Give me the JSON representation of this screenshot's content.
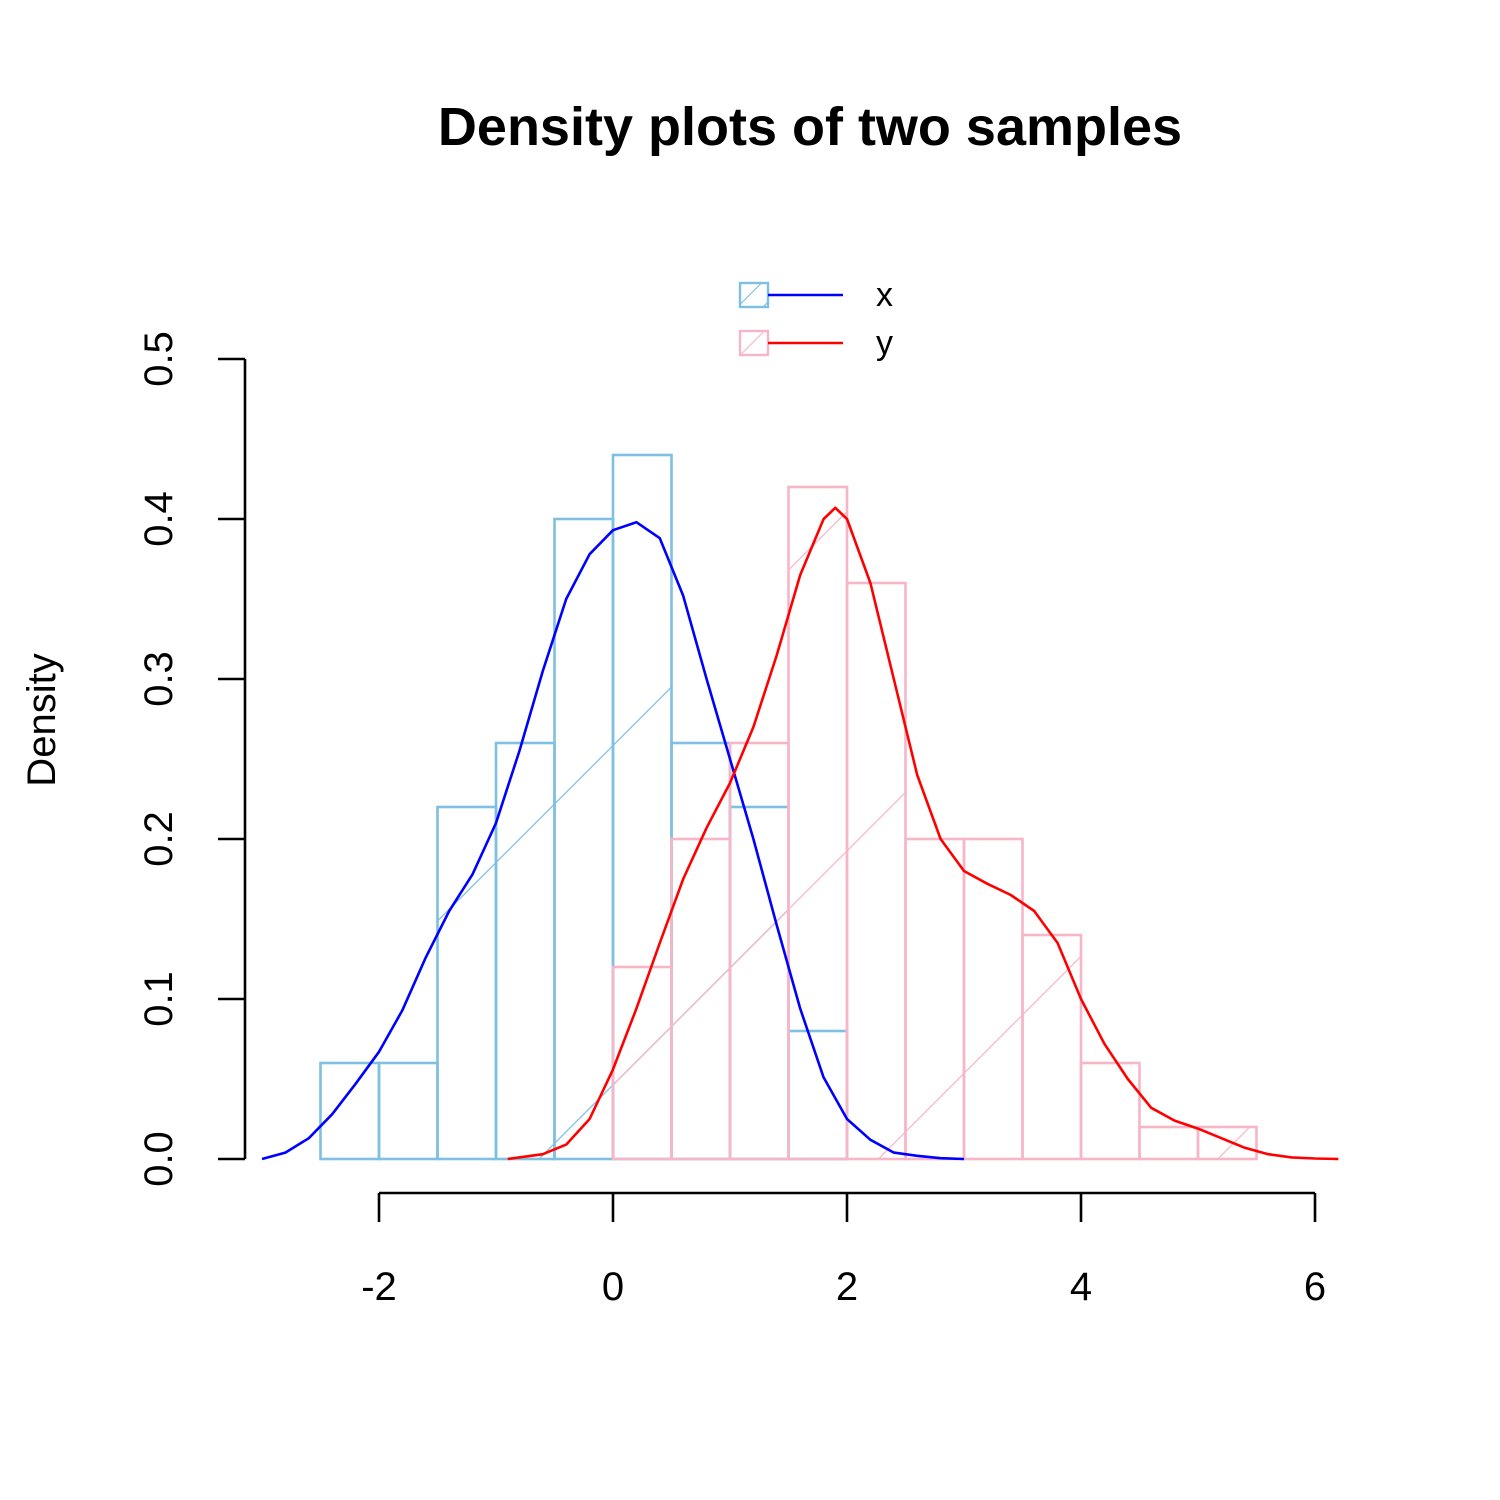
{
  "chart_data": {
    "type": "histogram",
    "title": "Density plots of two samples",
    "ylabel": "Density",
    "xlabel": "",
    "xlim": [
      -3.0,
      6.2
    ],
    "ylim": [
      0,
      0.5
    ],
    "x_ticks": [
      -2,
      0,
      2,
      4,
      6
    ],
    "y_ticks": [
      0.0,
      0.1,
      0.2,
      0.3,
      0.4,
      0.5
    ],
    "x_tick_labels": [
      "-2",
      "0",
      "2",
      "4",
      "6"
    ],
    "y_tick_labels": [
      "0.0",
      "0.1",
      "0.2",
      "0.3",
      "0.4",
      "0.5"
    ],
    "legend": {
      "position": "top",
      "entries": [
        "x",
        "y"
      ]
    },
    "colors": {
      "x_hist": "#7ec0e0",
      "x_density": "#0000ff",
      "y_hist": "#f7b6c8",
      "y_density": "#ff0000"
    },
    "series": [
      {
        "name": "x",
        "bins": [
          {
            "x0": -2.5,
            "x1": -2.0,
            "density": 0.06
          },
          {
            "x0": -2.0,
            "x1": -1.5,
            "density": 0.06
          },
          {
            "x0": -1.5,
            "x1": -1.0,
            "density": 0.22
          },
          {
            "x0": -1.0,
            "x1": -0.5,
            "density": 0.26
          },
          {
            "x0": -0.5,
            "x1": 0.0,
            "density": 0.4
          },
          {
            "x0": 0.0,
            "x1": 0.5,
            "density": 0.44
          },
          {
            "x0": 0.5,
            "x1": 1.0,
            "density": 0.26
          },
          {
            "x0": 1.0,
            "x1": 1.5,
            "density": 0.22
          },
          {
            "x0": 1.5,
            "x1": 2.0,
            "density": 0.08
          }
        ],
        "density": [
          [
            -3.0,
            0.0
          ],
          [
            -2.8,
            0.004
          ],
          [
            -2.6,
            0.013
          ],
          [
            -2.4,
            0.028
          ],
          [
            -2.2,
            0.047
          ],
          [
            -2.0,
            0.067
          ],
          [
            -1.8,
            0.093
          ],
          [
            -1.6,
            0.126
          ],
          [
            -1.4,
            0.155
          ],
          [
            -1.2,
            0.178
          ],
          [
            -1.0,
            0.21
          ],
          [
            -0.8,
            0.255
          ],
          [
            -0.6,
            0.305
          ],
          [
            -0.4,
            0.35
          ],
          [
            -0.2,
            0.378
          ],
          [
            0.0,
            0.393
          ],
          [
            0.2,
            0.398
          ],
          [
            0.4,
            0.388
          ],
          [
            0.6,
            0.352
          ],
          [
            0.8,
            0.3
          ],
          [
            1.0,
            0.25
          ],
          [
            1.2,
            0.2
          ],
          [
            1.4,
            0.146
          ],
          [
            1.6,
            0.094
          ],
          [
            1.8,
            0.051
          ],
          [
            2.0,
            0.025
          ],
          [
            2.2,
            0.012
          ],
          [
            2.4,
            0.004
          ],
          [
            2.6,
            0.002
          ],
          [
            2.8,
            0.0005
          ],
          [
            3.0,
            0.0
          ]
        ]
      },
      {
        "name": "y",
        "bins": [
          {
            "x0": 0.0,
            "x1": 0.5,
            "density": 0.12
          },
          {
            "x0": 0.5,
            "x1": 1.0,
            "density": 0.2
          },
          {
            "x0": 1.0,
            "x1": 1.5,
            "density": 0.26
          },
          {
            "x0": 1.5,
            "x1": 2.0,
            "density": 0.42
          },
          {
            "x0": 2.0,
            "x1": 2.5,
            "density": 0.36
          },
          {
            "x0": 2.5,
            "x1": 3.0,
            "density": 0.2
          },
          {
            "x0": 3.0,
            "x1": 3.5,
            "density": 0.2
          },
          {
            "x0": 3.5,
            "x1": 4.0,
            "density": 0.14
          },
          {
            "x0": 4.0,
            "x1": 4.5,
            "density": 0.06
          },
          {
            "x0": 4.5,
            "x1": 5.0,
            "density": 0.02
          },
          {
            "x0": 5.0,
            "x1": 5.5,
            "density": 0.02
          }
        ],
        "density": [
          [
            -0.9,
            0.0
          ],
          [
            -0.6,
            0.003
          ],
          [
            -0.4,
            0.009
          ],
          [
            -0.2,
            0.025
          ],
          [
            0.0,
            0.056
          ],
          [
            0.2,
            0.094
          ],
          [
            0.4,
            0.135
          ],
          [
            0.6,
            0.175
          ],
          [
            0.8,
            0.207
          ],
          [
            1.0,
            0.235
          ],
          [
            1.2,
            0.27
          ],
          [
            1.4,
            0.315
          ],
          [
            1.6,
            0.365
          ],
          [
            1.8,
            0.4
          ],
          [
            1.9,
            0.407
          ],
          [
            2.0,
            0.4
          ],
          [
            2.2,
            0.36
          ],
          [
            2.4,
            0.3
          ],
          [
            2.6,
            0.24
          ],
          [
            2.8,
            0.2
          ],
          [
            3.0,
            0.18
          ],
          [
            3.2,
            0.172
          ],
          [
            3.4,
            0.165
          ],
          [
            3.6,
            0.155
          ],
          [
            3.8,
            0.135
          ],
          [
            4.0,
            0.1
          ],
          [
            4.2,
            0.072
          ],
          [
            4.4,
            0.05
          ],
          [
            4.6,
            0.032
          ],
          [
            4.8,
            0.024
          ],
          [
            5.0,
            0.019
          ],
          [
            5.2,
            0.013
          ],
          [
            5.4,
            0.007
          ],
          [
            5.6,
            0.003
          ],
          [
            5.8,
            0.001
          ],
          [
            6.0,
            0.0003
          ],
          [
            6.2,
            0.0
          ]
        ]
      }
    ]
  }
}
